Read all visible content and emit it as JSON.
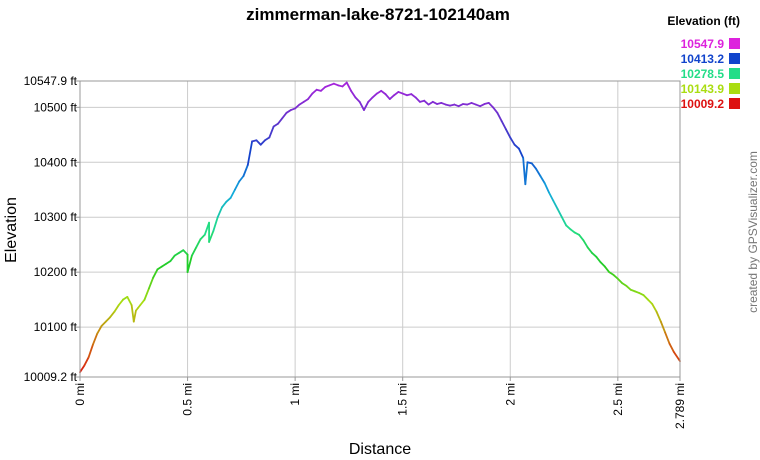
{
  "chart_data": {
    "type": "line",
    "title": "zimmerman-lake-8721-102140am",
    "xlabel": "Distance",
    "ylabel": "Elevation",
    "ylim": [
      10009.2,
      10547.9
    ],
    "xlim": [
      0,
      2.789
    ],
    "grid": true,
    "y_ticks": [
      {
        "value": 10009.2,
        "label": "10009.2 ft"
      },
      {
        "value": 10100,
        "label": "10100 ft"
      },
      {
        "value": 10200,
        "label": "10200 ft"
      },
      {
        "value": 10300,
        "label": "10300 ft"
      },
      {
        "value": 10400,
        "label": "10400 ft"
      },
      {
        "value": 10500,
        "label": "10500 ft"
      },
      {
        "value": 10547.9,
        "label": "10547.9 ft"
      }
    ],
    "x_ticks": [
      {
        "value": 0,
        "label": "0 mi"
      },
      {
        "value": 0.5,
        "label": "0.5 mi"
      },
      {
        "value": 1,
        "label": "1 mi"
      },
      {
        "value": 1.5,
        "label": "1.5 mi"
      },
      {
        "value": 2,
        "label": "2 mi"
      },
      {
        "value": 2.5,
        "label": "2.5 mi"
      },
      {
        "value": 2.789,
        "label": "2.789 mi"
      }
    ],
    "legend": {
      "title": "Elevation (ft)",
      "position": "top-right",
      "entries": [
        {
          "label": "10547.9",
          "color": "#dd22dd"
        },
        {
          "label": "10413.2",
          "color": "#1144cc"
        },
        {
          "label": "10278.5",
          "color": "#22dd88"
        },
        {
          "label": "10143.9",
          "color": "#aadd11"
        },
        {
          "label": "10009.2",
          "color": "#dd1111"
        }
      ]
    },
    "color_scale": {
      "stops": [
        {
          "value": 10009.2,
          "color": "#dd1111"
        },
        {
          "value": 10080,
          "color": "#cc7711"
        },
        {
          "value": 10143.9,
          "color": "#aadd11"
        },
        {
          "value": 10210,
          "color": "#22cc22"
        },
        {
          "value": 10278.5,
          "color": "#22dd88"
        },
        {
          "value": 10345,
          "color": "#11aadd"
        },
        {
          "value": 10413.2,
          "color": "#1144cc"
        },
        {
          "value": 10480,
          "color": "#6633cc"
        },
        {
          "value": 10547.9,
          "color": "#aa22dd"
        }
      ]
    },
    "series": [
      {
        "x": [
          0,
          0.02,
          0.04,
          0.06,
          0.08,
          0.1,
          0.12,
          0.14,
          0.16,
          0.18,
          0.2,
          0.22,
          0.24,
          0.25,
          0.26,
          0.27,
          0.28,
          0.3,
          0.32,
          0.34,
          0.36,
          0.38,
          0.4,
          0.42,
          0.44,
          0.46,
          0.48,
          0.5,
          0.5,
          0.52,
          0.54,
          0.56,
          0.58,
          0.6,
          0.6,
          0.62,
          0.64,
          0.66,
          0.68,
          0.7,
          0.72,
          0.74,
          0.76,
          0.78,
          0.8,
          0.82,
          0.84,
          0.86,
          0.88,
          0.9,
          0.92,
          0.94,
          0.96,
          0.98,
          1,
          1.02,
          1.04,
          1.06,
          1.08,
          1.1,
          1.12,
          1.14,
          1.16,
          1.18,
          1.2,
          1.22,
          1.24,
          1.26,
          1.28,
          1.3,
          1.32,
          1.34,
          1.36,
          1.38,
          1.4,
          1.42,
          1.44,
          1.46,
          1.48,
          1.5,
          1.52,
          1.54,
          1.56,
          1.58,
          1.6,
          1.62,
          1.64,
          1.66,
          1.68,
          1.7,
          1.72,
          1.74,
          1.76,
          1.78,
          1.8,
          1.82,
          1.84,
          1.86,
          1.88,
          1.9,
          1.92,
          1.94,
          1.96,
          1.98,
          2,
          2.02,
          2.04,
          2.06,
          2.07,
          2.08,
          2.1,
          2.12,
          2.14,
          2.16,
          2.18,
          2.2,
          2.22,
          2.24,
          2.26,
          2.28,
          2.3,
          2.32,
          2.34,
          2.36,
          2.38,
          2.4,
          2.42,
          2.44,
          2.46,
          2.48,
          2.5,
          2.52,
          2.54,
          2.56,
          2.58,
          2.6,
          2.62,
          2.64,
          2.66,
          2.68,
          2.7,
          2.72,
          2.74,
          2.76,
          2.789
        ],
        "y": [
          10018,
          10030,
          10045,
          10068,
          10088,
          10102,
          10110,
          10118,
          10128,
          10140,
          10150,
          10155,
          10140,
          10110,
          10130,
          10135,
          10140,
          10150,
          10170,
          10190,
          10205,
          10210,
          10215,
          10220,
          10230,
          10235,
          10240,
          10232,
          10200,
          10230,
          10245,
          10260,
          10268,
          10290,
          10255,
          10275,
          10300,
          10318,
          10328,
          10335,
          10350,
          10365,
          10375,
          10395,
          10438,
          10440,
          10432,
          10440,
          10445,
          10465,
          10470,
          10480,
          10490,
          10495,
          10498,
          10505,
          10510,
          10515,
          10525,
          10532,
          10530,
          10537,
          10540,
          10543,
          10540,
          10538,
          10545,
          10530,
          10518,
          10510,
          10495,
          10510,
          10518,
          10525,
          10530,
          10524,
          10515,
          10522,
          10528,
          10525,
          10522,
          10524,
          10518,
          10510,
          10512,
          10505,
          10510,
          10506,
          10508,
          10505,
          10503,
          10505,
          10502,
          10506,
          10505,
          10508,
          10505,
          10502,
          10506,
          10508,
          10500,
          10490,
          10475,
          10460,
          10445,
          10432,
          10425,
          10408,
          10360,
          10400,
          10398,
          10388,
          10375,
          10362,
          10345,
          10330,
          10315,
          10300,
          10285,
          10278,
          10272,
          10268,
          10258,
          10245,
          10235,
          10228,
          10218,
          10210,
          10200,
          10195,
          10188,
          10180,
          10175,
          10168,
          10165,
          10162,
          10158,
          10150,
          10142,
          10128,
          10110,
          10090,
          10070,
          10055,
          10038
        ]
      }
    ]
  },
  "credit": "created by GPSVisualizer.com"
}
